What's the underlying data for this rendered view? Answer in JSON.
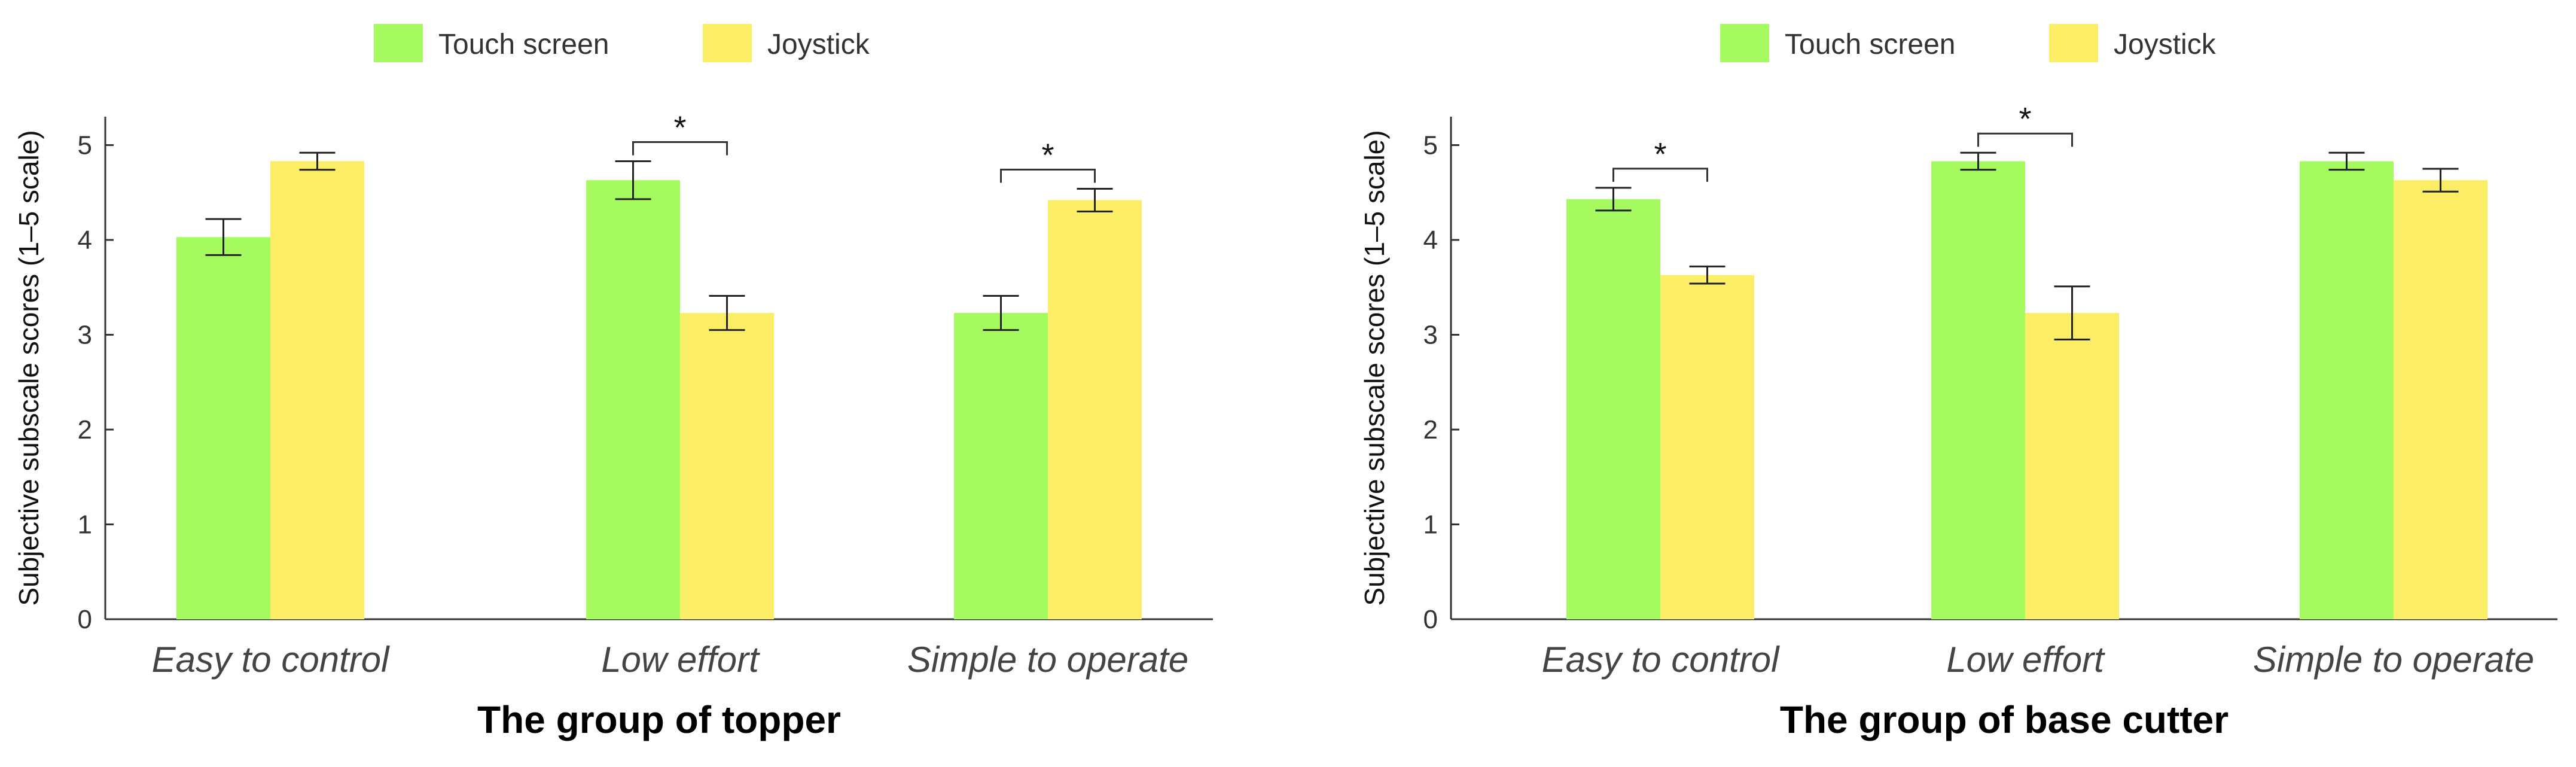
{
  "chart_data": [
    {
      "type": "bar",
      "title": "",
      "xlabel": "The group of topper",
      "ylabel": "Subjective subscale scores (1–5 scale)",
      "ylim": [
        0,
        5.3
      ],
      "yticks": [
        "0",
        "1",
        "2",
        "3",
        "4",
        "5"
      ],
      "categories": [
        "Easy to control",
        "Low effort",
        "Simple to operate"
      ],
      "series": [
        {
          "name": "Touch screen",
          "color": "#a5fa5f",
          "values": [
            4.03,
            4.63,
            3.23
          ],
          "errors": [
            0.19,
            0.2,
            0.18
          ]
        },
        {
          "name": "Joystick",
          "color": "#fbed65",
          "values": [
            4.83,
            3.23,
            4.42
          ],
          "errors": [
            0.09,
            0.18,
            0.12
          ]
        }
      ],
      "significance": [
        {
          "category_index": 1,
          "label": "*"
        },
        {
          "category_index": 2,
          "label": "*"
        }
      ],
      "legend": {
        "placement": "top-center",
        "items": [
          "Touch screen",
          "Joystick"
        ]
      }
    },
    {
      "type": "bar",
      "title": "",
      "xlabel": "The group of base cutter",
      "ylabel": "Subjective subscale scores (1–5 scale)",
      "ylim": [
        0,
        5.3
      ],
      "yticks": [
        "0",
        "1",
        "2",
        "3",
        "4",
        "5"
      ],
      "categories": [
        "Easy to control",
        "Low effort",
        "Simple to operate"
      ],
      "series": [
        {
          "name": "Touch screen",
          "color": "#a5fa5f",
          "values": [
            4.43,
            4.83,
            4.83
          ],
          "errors": [
            0.12,
            0.09,
            0.09
          ]
        },
        {
          "name": "Joystick",
          "color": "#fbed65",
          "values": [
            3.63,
            3.23,
            4.63
          ],
          "errors": [
            0.09,
            0.28,
            0.12
          ]
        }
      ],
      "significance": [
        {
          "category_index": 0,
          "label": "*"
        },
        {
          "category_index": 1,
          "label": "*"
        }
      ],
      "legend": {
        "placement": "top-center",
        "items": [
          "Touch screen",
          "Joystick"
        ]
      }
    }
  ]
}
